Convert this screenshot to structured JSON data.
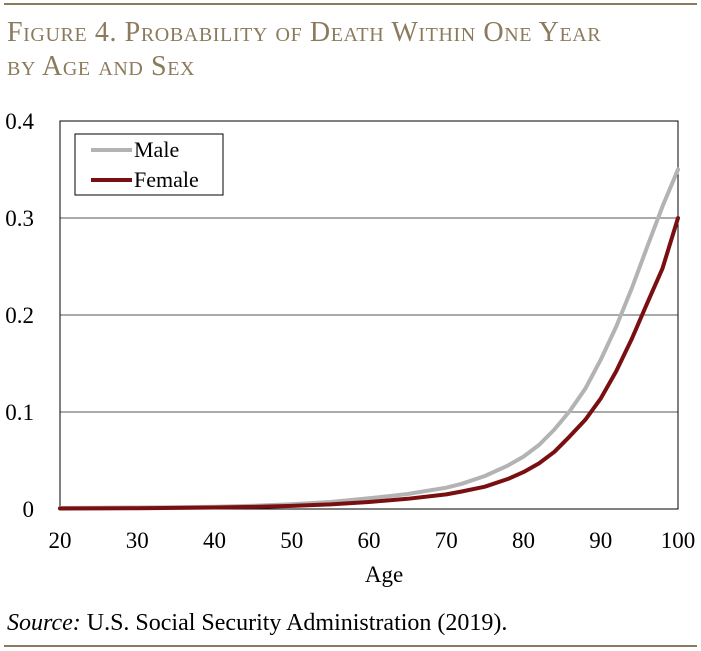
{
  "title_line1": "Figure 4. Probability of Death Within One Year",
  "title_line2": "by Age and Sex",
  "source": {
    "label": "Source:",
    "text": " U.S. Social Security Administration (2019)."
  },
  "chart_data": {
    "type": "line",
    "title": "Figure 4. Probability of Death Within One Year by Age and Sex",
    "xlabel": "Age",
    "ylabel": "",
    "xlim": [
      20,
      100
    ],
    "ylim": [
      0,
      0.4
    ],
    "xticks": [
      "20",
      "30",
      "40",
      "50",
      "60",
      "70",
      "80",
      "90",
      "100"
    ],
    "yticks": [
      "0",
      "0.1",
      "0.2",
      "0.3",
      "0.4"
    ],
    "grid": "horizontal",
    "legend_position": "top-left",
    "x": [
      20,
      25,
      30,
      35,
      40,
      45,
      50,
      55,
      60,
      65,
      70,
      72,
      75,
      78,
      80,
      82,
      84,
      86,
      88,
      90,
      92,
      94,
      96,
      98,
      100
    ],
    "series": [
      {
        "name": "Male",
        "color": "#b3b3b3",
        "values": [
          0.001,
          0.0013,
          0.0015,
          0.0019,
          0.0023,
          0.0033,
          0.0048,
          0.0072,
          0.011,
          0.0155,
          0.022,
          0.026,
          0.034,
          0.045,
          0.054,
          0.066,
          0.082,
          0.101,
          0.124,
          0.154,
          0.188,
          0.227,
          0.27,
          0.312,
          0.35
        ]
      },
      {
        "name": "Female",
        "color": "#7a0f12",
        "values": [
          0.0005,
          0.0006,
          0.0008,
          0.0011,
          0.0015,
          0.0022,
          0.0032,
          0.0047,
          0.0072,
          0.0105,
          0.015,
          0.018,
          0.023,
          0.031,
          0.038,
          0.047,
          0.059,
          0.075,
          0.092,
          0.114,
          0.142,
          0.175,
          0.212,
          0.248,
          0.3
        ]
      }
    ]
  }
}
